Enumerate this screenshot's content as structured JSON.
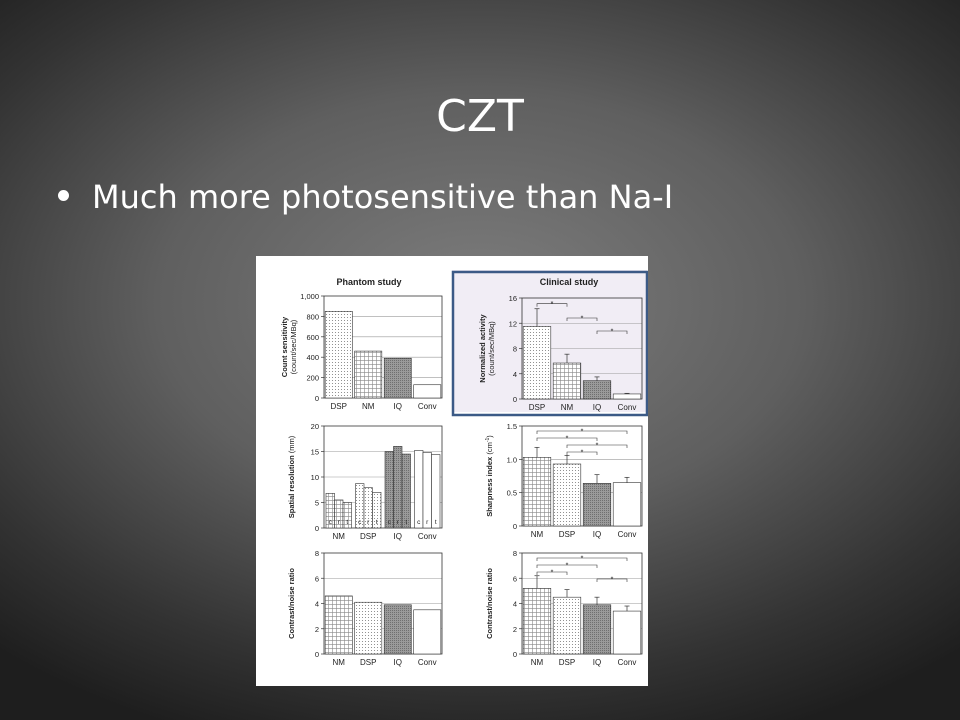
{
  "slide": {
    "title": "CZT",
    "bullet": "Much more photosensitive than Na-I"
  },
  "figure": {
    "col_titles": [
      "Phantom study",
      "Clinical study"
    ],
    "highlight_color": "#3c5a86",
    "clinical_bg": "#f1edf5"
  },
  "chart_data": [
    {
      "id": "count",
      "type": "bar",
      "title": "Phantom study",
      "ylabel": "Count sensitivity",
      "ylabel2": "(count/sec/MBq)",
      "categories": [
        "DSP",
        "NM",
        "IQ",
        "Conv"
      ],
      "values": [
        850,
        460,
        390,
        130
      ],
      "ylim": [
        0,
        1000
      ],
      "yticks": [
        0,
        200,
        400,
        600,
        800,
        1000
      ],
      "ytick_labels": [
        "0",
        "200",
        "400",
        "600",
        "800",
        "1,000"
      ],
      "patterns": [
        "dots",
        "grid",
        "shade",
        "none"
      ],
      "grid": true
    },
    {
      "id": "norm",
      "type": "bar",
      "title": "Clinical study",
      "ylabel": "Normalized activity",
      "ylabel2": "(count/sec/MBq)",
      "categories": [
        "DSP",
        "NM",
        "IQ",
        "Conv"
      ],
      "values": [
        11.5,
        5.7,
        2.9,
        0.8
      ],
      "errors": [
        2.8,
        1.4,
        0.6,
        0.1
      ],
      "ylim": [
        0,
        16
      ],
      "yticks": [
        0,
        4,
        8,
        12,
        16
      ],
      "patterns": [
        "dots",
        "grid",
        "shade",
        "none"
      ],
      "significance": [
        [
          0,
          1
        ],
        [
          1,
          2
        ],
        [
          2,
          3
        ]
      ],
      "sig_label": "*",
      "grid": true
    },
    {
      "id": "spatial",
      "type": "bar",
      "ylabel": "Spatial resolution",
      "ylabel_unit": "(mm)",
      "categories": [
        "NM",
        "DSP",
        "IQ",
        "Conv"
      ],
      "sub_labels": [
        "c",
        "r",
        "t"
      ],
      "values": [
        [
          6.8,
          5.5,
          5.0
        ],
        [
          8.7,
          7.9,
          7.0
        ],
        [
          15.0,
          16.0,
          14.5
        ],
        [
          15.2,
          14.8,
          14.4
        ]
      ],
      "ylim": [
        0,
        20
      ],
      "yticks": [
        0,
        5,
        10,
        15,
        20
      ],
      "patterns": [
        "grid",
        "dots",
        "shade",
        "none"
      ],
      "grid": true
    },
    {
      "id": "sharp",
      "type": "bar",
      "ylabel": "Sharpness index",
      "ylabel_unit": "(cm",
      "ylabel_sup": "-1",
      "ylabel_close": ")",
      "categories": [
        "NM",
        "DSP",
        "IQ",
        "Conv"
      ],
      "values": [
        1.03,
        0.93,
        0.64,
        0.65
      ],
      "errors": [
        0.15,
        0.13,
        0.13,
        0.08
      ],
      "ylim": [
        0,
        1.5
      ],
      "yticks": [
        0,
        0.5,
        1.0,
        1.5
      ],
      "ytick_labels": [
        "0",
        "0.5",
        "1.0",
        "1.5"
      ],
      "patterns": [
        "grid",
        "dots",
        "shade",
        "none"
      ],
      "significance": [
        [
          0,
          3
        ],
        [
          0,
          2
        ],
        [
          1,
          3
        ],
        [
          1,
          2
        ]
      ],
      "sig_label": "*",
      "grid": true
    },
    {
      "id": "cnr_phantom",
      "type": "bar",
      "ylabel": "Contrast/noise ratio",
      "categories": [
        "NM",
        "DSP",
        "IQ",
        "Conv"
      ],
      "values": [
        4.6,
        4.1,
        3.9,
        3.5
      ],
      "ylim": [
        0,
        8
      ],
      "yticks": [
        0,
        2,
        4,
        6,
        8
      ],
      "patterns": [
        "grid",
        "dots",
        "shade",
        "none"
      ],
      "grid": true
    },
    {
      "id": "cnr_clinical",
      "type": "bar",
      "ylabel": "Contrast/noise ratio",
      "categories": [
        "NM",
        "DSP",
        "IQ",
        "Conv"
      ],
      "values": [
        5.2,
        4.5,
        3.9,
        3.4
      ],
      "errors": [
        1.0,
        0.6,
        0.6,
        0.4
      ],
      "ylim": [
        0,
        8
      ],
      "yticks": [
        0,
        2,
        4,
        6,
        8
      ],
      "patterns": [
        "grid",
        "dots",
        "shade",
        "none"
      ],
      "significance": [
        [
          0,
          3
        ],
        [
          0,
          2
        ],
        [
          0,
          1
        ],
        [
          2,
          3
        ]
      ],
      "sig_label": "*",
      "grid": true
    }
  ]
}
